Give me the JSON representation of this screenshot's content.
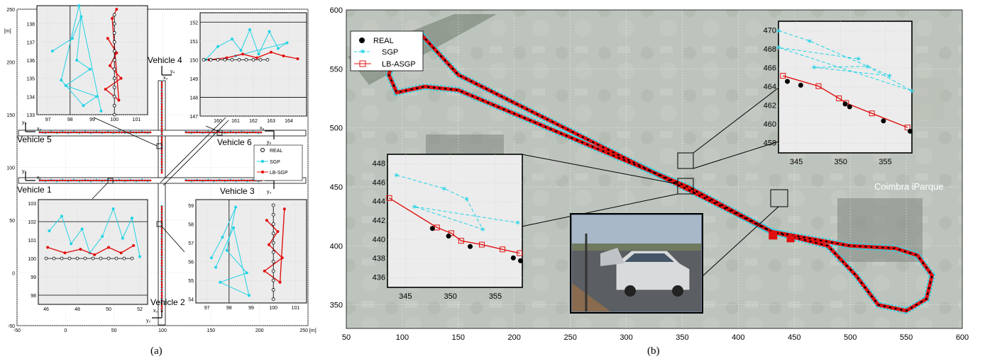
{
  "colors": {
    "real": "#000000",
    "sgp": "#22d3e6",
    "lbasgp": "#e01010",
    "map_bg": "#8f9a90"
  },
  "chart_data": [
    {
      "type": "scatter",
      "caption": "(a)",
      "xlabel": "250 [m]",
      "ylabel": "[m]",
      "xlim": [
        -50,
        250
      ],
      "ylim": [
        -50,
        250
      ],
      "xticks": [
        "-50",
        "0",
        "50",
        "100",
        "150",
        "200",
        "250 [m]"
      ],
      "yticks": [
        "-50",
        "0",
        "50",
        "100",
        "150",
        "200",
        "250"
      ],
      "legend": {
        "position": "right",
        "entries": [
          "REAL",
          "SGP",
          "LB-SGP"
        ]
      },
      "vehicle_labels": [
        "Vehicle 1",
        "Vehicle 2",
        "Vehicle 3",
        "Vehicle 4",
        "Vehicle 5",
        "Vehicle 6"
      ],
      "axis_symbols": {
        "y1": "y₁",
        "x1": "x₁",
        "y2": "y₂",
        "x2": "x₂",
        "y3": "y₃",
        "x3": "x₃",
        "y4": "y₄",
        "x4": "x₄",
        "y5": "y₅",
        "x5": "x₅",
        "y6": "y₆",
        "x6": "x₆"
      },
      "insets": [
        {
          "name": "vehicle5-inset",
          "xlim": [
            96.5,
            101.5
          ],
          "ylim": [
            133,
            139
          ],
          "xticks": [
            "97",
            "98",
            "99",
            "100",
            "101"
          ],
          "yticks": [
            "133",
            "134",
            "135",
            "136",
            "137",
            "138"
          ],
          "real": [
            [
              100,
              133
            ],
            [
              100,
              133.5
            ],
            [
              100,
              134
            ],
            [
              100,
              134.5
            ],
            [
              100,
              135
            ],
            [
              100,
              135.5
            ],
            [
              100,
              136
            ],
            [
              100,
              136.5
            ],
            [
              100,
              137
            ],
            [
              100,
              137.5
            ],
            [
              100,
              138
            ],
            [
              100,
              138.5
            ]
          ],
          "sgp": [
            [
              97.2,
              136.5
            ],
            [
              98.1,
              137.2
            ],
            [
              98.5,
              138.4
            ],
            [
              98.3,
              136
            ],
            [
              98.9,
              135.5
            ],
            [
              97.8,
              134.6
            ],
            [
              99.2,
              134
            ],
            [
              98.6,
              133.5
            ],
            [
              97.6,
              134.9
            ],
            [
              98.4,
              139
            ],
            [
              99.4,
              133.2
            ]
          ],
          "lbasgp": [
            [
              99.7,
              137.2
            ],
            [
              100.1,
              136.4
            ],
            [
              99.8,
              135.7
            ],
            [
              100.3,
              135
            ],
            [
              99.6,
              134.4
            ],
            [
              100.2,
              133.8
            ],
            [
              99.9,
              138.3
            ],
            [
              100.1,
              138.8
            ]
          ]
        },
        {
          "name": "vehicle6-inset",
          "xlim": [
            159,
            165
          ],
          "ylim": [
            147,
            152.5
          ],
          "xticks": [
            "160",
            "161",
            "162",
            "163",
            "164"
          ],
          "yticks": [
            "147",
            "148",
            "149",
            "150",
            "151",
            "152"
          ],
          "real": [
            [
              159.2,
              150
            ],
            [
              159.6,
              150
            ],
            [
              160,
              150
            ],
            [
              160.4,
              150
            ],
            [
              160.8,
              150
            ],
            [
              161.2,
              150
            ],
            [
              161.6,
              150
            ],
            [
              162,
              150
            ],
            [
              162.4,
              150
            ],
            [
              162.8,
              150
            ]
          ],
          "sgp": [
            [
              159.3,
              150
            ],
            [
              160,
              150.7
            ],
            [
              160.8,
              151.1
            ],
            [
              161.3,
              150.5
            ],
            [
              161.8,
              151.6
            ],
            [
              162.3,
              150.3
            ],
            [
              162.9,
              151.5
            ],
            [
              163.4,
              150.6
            ],
            [
              163.9,
              150.9
            ],
            [
              161,
              150.2
            ]
          ],
          "lbasgp": [
            [
              159.5,
              150
            ],
            [
              160.5,
              150.1
            ],
            [
              161.4,
              150.3
            ],
            [
              162.2,
              150.1
            ],
            [
              163,
              150.4
            ],
            [
              163.7,
              150.2
            ],
            [
              164.5,
              150.05
            ]
          ]
        },
        {
          "name": "vehicle1-inset",
          "xlim": [
            45.5,
            52.5
          ],
          "ylim": [
            97.5,
            103.2
          ],
          "xticks": [
            "46",
            "48",
            "50",
            "52"
          ],
          "yticks": [
            "98",
            "99",
            "100",
            "101",
            "102",
            "103"
          ],
          "real": [
            [
              46,
              100
            ],
            [
              46.5,
              100
            ],
            [
              47,
              100
            ],
            [
              47.5,
              100
            ],
            [
              48,
              100
            ],
            [
              48.5,
              100
            ],
            [
              49,
              100
            ],
            [
              49.5,
              100
            ],
            [
              50,
              100
            ],
            [
              50.5,
              100
            ],
            [
              51,
              100
            ],
            [
              51.5,
              100
            ]
          ],
          "sgp": [
            [
              46.2,
              101.5
            ],
            [
              47,
              102.3
            ],
            [
              47.6,
              100.8
            ],
            [
              48.3,
              101.6
            ],
            [
              48.8,
              100.3
            ],
            [
              49.6,
              101.2
            ],
            [
              50.3,
              102.7
            ],
            [
              50.9,
              101.1
            ],
            [
              51.5,
              102.2
            ],
            [
              52,
              100.1
            ]
          ],
          "lbasgp": [
            [
              46.1,
              100.6
            ],
            [
              47.2,
              100.3
            ],
            [
              48.2,
              100.5
            ],
            [
              49.1,
              100.2
            ],
            [
              50,
              100.6
            ],
            [
              50.8,
              100.3
            ],
            [
              51.6,
              100.7
            ]
          ]
        },
        {
          "name": "vehicle3-inset",
          "xlim": [
            96.5,
            101.5
          ],
          "ylim": [
            53.8,
            59.3
          ],
          "xticks": [
            "97",
            "98",
            "99",
            "100",
            "101"
          ],
          "yticks": [
            "54",
            "55",
            "56",
            "57",
            "58",
            "59"
          ],
          "real": [
            [
              100,
              54
            ],
            [
              100,
              54.5
            ],
            [
              100,
              55
            ],
            [
              100,
              55.5
            ],
            [
              100,
              56
            ],
            [
              100,
              56.5
            ],
            [
              100,
              57
            ],
            [
              100,
              57.5
            ],
            [
              100,
              58
            ],
            [
              100,
              58.5
            ],
            [
              100,
              59
            ]
          ],
          "sgp": [
            [
              97.2,
              56.2
            ],
            [
              97.7,
              57.3
            ],
            [
              98.3,
              58.9
            ],
            [
              97.9,
              56.6
            ],
            [
              98.8,
              55.4
            ],
            [
              97.6,
              54.9
            ],
            [
              98.9,
              54.2
            ],
            [
              98.2,
              57.8
            ],
            [
              97.4,
              55.7
            ]
          ],
          "lbasgp": [
            [
              99.7,
              58.2
            ],
            [
              100.2,
              57.6
            ],
            [
              99.8,
              56.9
            ],
            [
              100.4,
              56.2
            ],
            [
              99.6,
              55.5
            ],
            [
              100.3,
              54.9
            ],
            [
              100.5,
              58.8
            ]
          ]
        }
      ]
    },
    {
      "type": "scatter",
      "caption": "(b)",
      "xlim": [
        50,
        600
      ],
      "ylim": [
        330,
        600
      ],
      "xticks": [
        "50",
        "100",
        "150",
        "200",
        "250",
        "300",
        "350",
        "400",
        "450",
        "500",
        "550",
        "600"
      ],
      "yticks": [
        "350",
        "400",
        "450",
        "500",
        "550",
        "600"
      ],
      "legend": {
        "position": "top-left",
        "entries": [
          "REAL",
          "SGP",
          "LB-ASGP"
        ]
      },
      "map_labels": [
        "Coimbra iParque"
      ],
      "track": [
        [
          93,
          565
        ],
        [
          103,
          578
        ],
        [
          118,
          578
        ],
        [
          150,
          545
        ],
        [
          350,
          450
        ],
        [
          430,
          412
        ],
        [
          500,
          400
        ],
        [
          540,
          398
        ],
        [
          560,
          392
        ],
        [
          573,
          375
        ],
        [
          568,
          355
        ],
        [
          550,
          345
        ],
        [
          525,
          350
        ],
        [
          505,
          375
        ],
        [
          480,
          400
        ],
        [
          430,
          412
        ],
        [
          355,
          450
        ],
        [
          150,
          532
        ],
        [
          120,
          535
        ],
        [
          95,
          530
        ],
        [
          88,
          545
        ],
        [
          93,
          565
        ]
      ],
      "insets": [
        {
          "name": "upper-right-inset",
          "xlim": [
            343,
            358
          ],
          "ylim": [
            457,
            471
          ],
          "xticks": [
            "345",
            "350",
            "355"
          ],
          "yticks": [
            "458",
            "460",
            "462",
            "464",
            "466",
            "468",
            "470"
          ],
          "real": [
            [
              344,
              464.6
            ],
            [
              345.5,
              464.2
            ],
            [
              350.5,
              462.2
            ],
            [
              351,
              461.9
            ],
            [
              354.8,
              460.4
            ],
            [
              357.8,
              459.3
            ]
          ],
          "sgp": [
            [
              343,
              470
            ],
            [
              346.5,
              468.9
            ],
            [
              355.5,
              465.2
            ],
            [
              347,
              466.1
            ],
            [
              353,
              466.2
            ],
            [
              358,
              463.6
            ],
            [
              343,
              468.2
            ],
            [
              352,
              467
            ]
          ],
          "lbasgp": [
            [
              343.5,
              465.2
            ],
            [
              347.5,
              464.1
            ],
            [
              349.8,
              462.8
            ],
            [
              350.6,
              462.3
            ],
            [
              353.5,
              461.2
            ],
            [
              357.5,
              459.7
            ]
          ]
        },
        {
          "name": "lower-left-inset",
          "xlim": [
            343,
            358
          ],
          "ylim": [
            435,
            449
          ],
          "xticks": [
            "345",
            "350",
            "355"
          ],
          "yticks": [
            "436",
            "438",
            "440",
            "442",
            "444",
            "446",
            "448"
          ],
          "real": [
            [
              348,
              441.2
            ],
            [
              349.8,
              440.4
            ],
            [
              352.2,
              439.3
            ],
            [
              357,
              438.1
            ],
            [
              357.8,
              437.8
            ]
          ],
          "sgp": [
            [
              344,
              446.8
            ],
            [
              349.3,
              445.4
            ],
            [
              351.8,
              444.3
            ],
            [
              353.6,
              441.1
            ],
            [
              346,
              443.5
            ],
            [
              357.5,
              441.8
            ]
          ],
          "lbasgp": [
            [
              343.2,
              444.4
            ],
            [
              348.5,
              441.3
            ],
            [
              350.1,
              440.7
            ],
            [
              351.2,
              439.9
            ],
            [
              353.5,
              439.5
            ],
            [
              355.8,
              439
            ],
            [
              357.7,
              438.6
            ]
          ]
        }
      ]
    }
  ]
}
